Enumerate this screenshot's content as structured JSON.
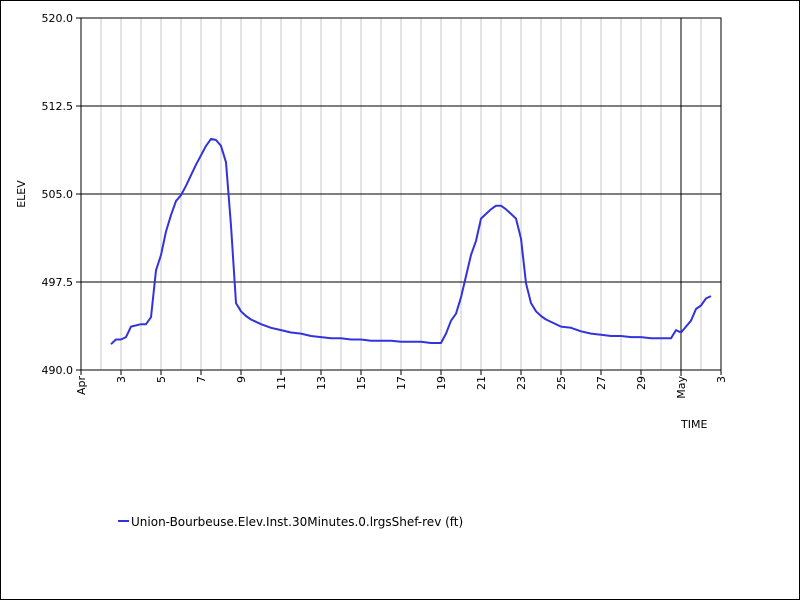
{
  "chart_data": {
    "type": "line",
    "xlabel": "TIME",
    "ylabel": "ELEV",
    "ylim": [
      490.0,
      520.0
    ],
    "y_ticks": [
      "490.0",
      "497.5",
      "505.0",
      "512.5",
      "520.0"
    ],
    "x_range": [
      "Apr 1",
      "May 3"
    ],
    "x_tick_labels": [
      {
        "day": 1,
        "label": "Apr"
      },
      {
        "day": 3,
        "label": "3"
      },
      {
        "day": 5,
        "label": "5"
      },
      {
        "day": 7,
        "label": "7"
      },
      {
        "day": 9,
        "label": "9"
      },
      {
        "day": 11,
        "label": "11"
      },
      {
        "day": 13,
        "label": "13"
      },
      {
        "day": 15,
        "label": "15"
      },
      {
        "day": 17,
        "label": "17"
      },
      {
        "day": 19,
        "label": "19"
      },
      {
        "day": 21,
        "label": "21"
      },
      {
        "day": 23,
        "label": "23"
      },
      {
        "day": 25,
        "label": "25"
      },
      {
        "day": 27,
        "label": "27"
      },
      {
        "day": 29,
        "label": "29"
      },
      {
        "day": 31,
        "label": "May"
      },
      {
        "day": 33,
        "label": "3"
      }
    ],
    "month_boundary_day": 31,
    "legend_position": "bottom-left",
    "grid": true,
    "series": [
      {
        "name": "Union-Bourbeuse.Elev.Inst.30Minutes.0.lrgsShef-rev (ft)",
        "color": "#3333dd",
        "points": [
          [
            2.5,
            492.2
          ],
          [
            2.75,
            492.6
          ],
          [
            3.0,
            492.6
          ],
          [
            3.25,
            492.8
          ],
          [
            3.5,
            493.7
          ],
          [
            4.0,
            493.9
          ],
          [
            4.25,
            493.9
          ],
          [
            4.5,
            494.5
          ],
          [
            4.75,
            498.5
          ],
          [
            5.0,
            499.8
          ],
          [
            5.25,
            501.8
          ],
          [
            5.5,
            503.2
          ],
          [
            5.75,
            504.4
          ],
          [
            6.0,
            504.9
          ],
          [
            6.25,
            505.7
          ],
          [
            6.5,
            506.6
          ],
          [
            6.75,
            507.5
          ],
          [
            7.0,
            508.3
          ],
          [
            7.25,
            509.1
          ],
          [
            7.5,
            509.7
          ],
          [
            7.75,
            509.6
          ],
          [
            8.0,
            509.1
          ],
          [
            8.25,
            507.7
          ],
          [
            8.5,
            502.3
          ],
          [
            8.75,
            495.7
          ],
          [
            9.0,
            495.0
          ],
          [
            9.25,
            494.6
          ],
          [
            9.5,
            494.3
          ],
          [
            10.0,
            493.9
          ],
          [
            10.5,
            493.6
          ],
          [
            11.0,
            493.4
          ],
          [
            11.5,
            493.2
          ],
          [
            12.0,
            493.1
          ],
          [
            12.5,
            492.9
          ],
          [
            13.0,
            492.8
          ],
          [
            13.5,
            492.7
          ],
          [
            14.0,
            492.7
          ],
          [
            14.5,
            492.6
          ],
          [
            15.0,
            492.6
          ],
          [
            15.5,
            492.5
          ],
          [
            16.0,
            492.5
          ],
          [
            16.5,
            492.5
          ],
          [
            17.0,
            492.4
          ],
          [
            17.5,
            492.4
          ],
          [
            18.0,
            492.4
          ],
          [
            18.5,
            492.3
          ],
          [
            19.0,
            492.3
          ],
          [
            19.25,
            493.1
          ],
          [
            19.5,
            494.2
          ],
          [
            19.75,
            494.8
          ],
          [
            20.0,
            496.2
          ],
          [
            20.25,
            498.0
          ],
          [
            20.5,
            499.8
          ],
          [
            20.75,
            501.0
          ],
          [
            21.0,
            502.9
          ],
          [
            21.25,
            503.3
          ],
          [
            21.5,
            503.7
          ],
          [
            21.75,
            504.0
          ],
          [
            22.0,
            504.0
          ],
          [
            22.25,
            503.7
          ],
          [
            22.5,
            503.3
          ],
          [
            22.75,
            502.9
          ],
          [
            23.0,
            501.2
          ],
          [
            23.25,
            497.4
          ],
          [
            23.5,
            495.7
          ],
          [
            23.75,
            495.0
          ],
          [
            24.0,
            494.6
          ],
          [
            24.25,
            494.3
          ],
          [
            24.5,
            494.1
          ],
          [
            25.0,
            493.7
          ],
          [
            25.5,
            493.6
          ],
          [
            26.0,
            493.3
          ],
          [
            26.5,
            493.1
          ],
          [
            27.0,
            493.0
          ],
          [
            27.5,
            492.9
          ],
          [
            28.0,
            492.9
          ],
          [
            28.5,
            492.8
          ],
          [
            29.0,
            492.8
          ],
          [
            29.5,
            492.7
          ],
          [
            30.0,
            492.7
          ],
          [
            30.5,
            492.7
          ],
          [
            30.75,
            493.4
          ],
          [
            31.0,
            493.2
          ],
          [
            31.25,
            493.7
          ],
          [
            31.5,
            494.2
          ],
          [
            31.75,
            495.2
          ],
          [
            32.0,
            495.5
          ],
          [
            32.25,
            496.1
          ],
          [
            32.5,
            496.3
          ]
        ]
      }
    ]
  }
}
